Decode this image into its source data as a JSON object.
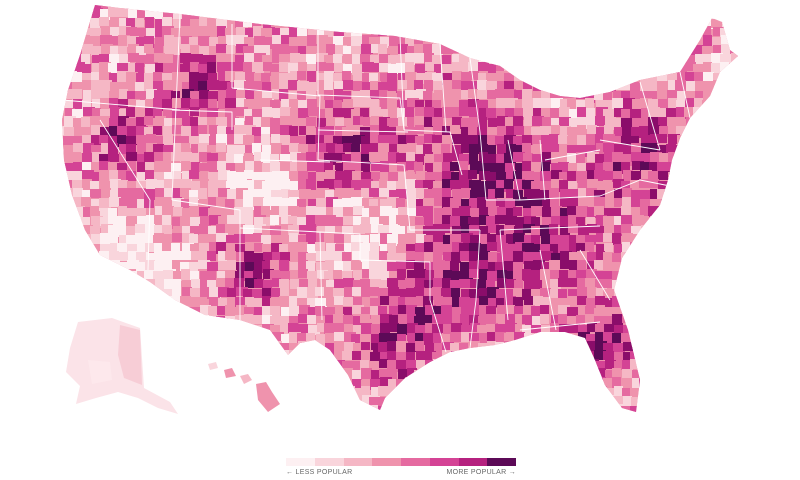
{
  "map": {
    "palette": [
      "#fdf0f2",
      "#f9d5dc",
      "#f5b7c5",
      "#ef93ad",
      "#e56aa0",
      "#d44395",
      "#b5217f",
      "#8a0d6a",
      "#5c0a57"
    ],
    "border_color": "#ffffff",
    "regions": [
      "contiguous-us",
      "alaska",
      "hawaii"
    ]
  },
  "legend": {
    "less_label": "← LESS POPULAR",
    "more_label": "MORE POPULAR →",
    "swatches": [
      "#fdf0f2",
      "#f9d5dc",
      "#f5b7c5",
      "#ef93ad",
      "#e56aa0",
      "#d44395",
      "#b5217f",
      "#5c0a57"
    ]
  }
}
